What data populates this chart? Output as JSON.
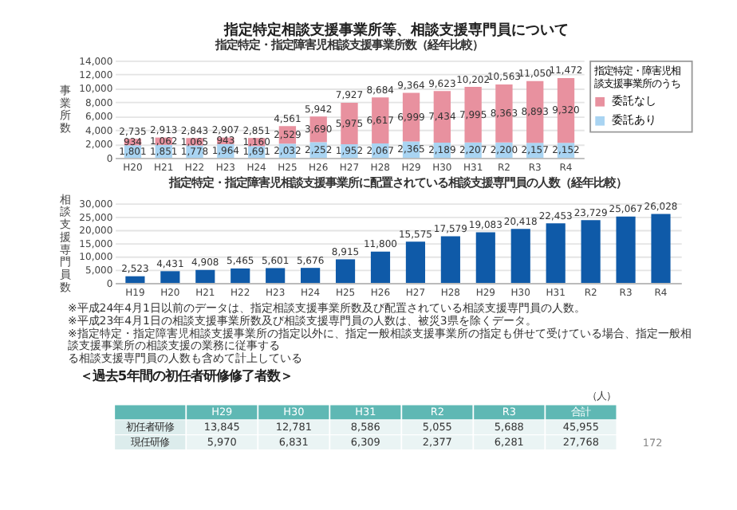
{
  "chart_data": [
    {
      "type": "bar",
      "title": "指定特定相談支援事業所等、相談支援専門員について",
      "subtitle": "指定特定・指定障害児相談支援事業所数（経年比較）",
      "ylabel": "事業所数",
      "legend_title": "指定特定・障害児相談支援事業所のうち",
      "legend": "right",
      "stacked": true,
      "grid": "y",
      "categories": [
        "H20",
        "H21",
        "H22",
        "H23",
        "H24",
        "H25",
        "H26",
        "H27",
        "H28",
        "H29",
        "H30",
        "H31",
        "R2",
        "R3",
        "R4"
      ],
      "series": [
        {
          "name": "委託あり",
          "color": "#a9d4f2",
          "values": [
            1801,
            1851,
            1778,
            1964,
            1691,
            2032,
            2252,
            1952,
            2067,
            2365,
            2189,
            2207,
            2200,
            2157,
            2152
          ],
          "value_labels": [
            "1,801",
            "1,851",
            "1,778",
            "1,964",
            "1,691",
            "2,032",
            "2,252",
            "1,952",
            "2,067",
            "2,365",
            "2,189",
            "2,207",
            "2,200",
            "2,157",
            "2,152"
          ]
        },
        {
          "name": "委託なし",
          "color": "#e8919f",
          "values": [
            934,
            1062,
            1065,
            943,
            1160,
            2529,
            3690,
            5975,
            6617,
            6999,
            7434,
            7995,
            8363,
            8893,
            9320
          ],
          "value_labels": [
            "934",
            "1,062",
            "1,065",
            "943",
            "1,160",
            "2,529",
            "3,690",
            "5,975",
            "6,617",
            "6,999",
            "7,434",
            "7,995",
            "8,363",
            "8,893",
            "9,320"
          ]
        }
      ],
      "totals": [
        "2,735",
        "2,913",
        "2,843",
        "2,907",
        "2,851",
        "4,561",
        "5,942",
        "7,927",
        "8,684",
        "9,364",
        "9,623",
        "10,202",
        "10,563",
        "11,050",
        "11,472"
      ],
      "ylim": [
        0,
        14000
      ],
      "yticks": [
        0,
        {
          "value": 2000,
          "label": "2,000"
        },
        {
          "value": 4000,
          "label": "4,000"
        },
        {
          "value": 6000,
          "label": "6,000"
        },
        {
          "value": 8000,
          "label": "8,000"
        },
        {
          "value": 10000,
          "label": "10,000"
        },
        {
          "value": 12000,
          "label": "12,000"
        },
        {
          "value": 14000,
          "label": "14,000"
        }
      ]
    },
    {
      "type": "bar",
      "title": "指定特定・指定障害児相談支援事業所に配置されている相談支援専門員の人数（経年比較）",
      "ylabel": "相談支援専門員数",
      "grid": "y",
      "color": "#0f5aa8",
      "categories": [
        "H19",
        "H20",
        "H21",
        "H22",
        "H23",
        "H24",
        "H25",
        "H26",
        "H27",
        "H28",
        "H29",
        "H30",
        "H31",
        "R2",
        "R3",
        "R4"
      ],
      "values": [
        2523,
        4431,
        4908,
        5465,
        5601,
        5676,
        8915,
        11800,
        15575,
        17579,
        19083,
        20418,
        22453,
        23729,
        25067,
        26028
      ],
      "value_labels": [
        "2,523",
        "4,431",
        "4,908",
        "5,465",
        "5,601",
        "5,676",
        "8,915",
        "11,800",
        "15,575",
        "17,579",
        "19,083",
        "20,418",
        "22,453",
        "23,729",
        "25,067",
        "26,028"
      ],
      "ylim": [
        0,
        30000
      ],
      "yticks": [
        0,
        {
          "value": 5000,
          "label": "5,000"
        },
        {
          "value": 10000,
          "label": "10,000"
        },
        {
          "value": 15000,
          "label": "15,000"
        },
        {
          "value": 20000,
          "label": "20,000"
        },
        {
          "value": 25000,
          "label": "25,000"
        },
        {
          "value": 30000,
          "label": "30,000"
        }
      ],
      "annotations": [
        "※平成24年4月1日以前のデータは、指定相談支援事業所数及び配置されている相談支援専門員の人数。",
        "※平成23年4月1日の相談支援事業所数及び相談支援専門員の人数は、被災3県を除くデータ。",
        "※指定特定・指定障害児相談支援事業所の指定以外に、指定一般相談支援事業所の指定も併せて受けている場合、指定一般相談支援事業所の相談支援の業務に従事する",
        "る相談支援専門員の人数も含めて計上している"
      ]
    },
    {
      "type": "other",
      "title": "＜過去5年間の初任者研修修了者数＞",
      "categories": [
        "H29",
        "H30",
        "H31",
        "R2",
        "R3",
        "合計"
      ],
      "series": [
        {
          "name": "初任者研修",
          "values": [
            13845,
            12781,
            8586,
            5055,
            5688,
            45955
          ],
          "value_labels": [
            "13,845",
            "12,781",
            "8,586",
            "5,055",
            "5,688",
            "45,955"
          ]
        },
        {
          "name": "現任研修",
          "values": [
            5970,
            6831,
            6309,
            2377,
            6281,
            27768
          ],
          "value_labels": [
            "5,970",
            "6,831",
            "6,309",
            "2,377",
            "6,281",
            "27,768"
          ]
        }
      ],
      "annotations": [
        "（人）",
        "172"
      ]
    }
  ]
}
